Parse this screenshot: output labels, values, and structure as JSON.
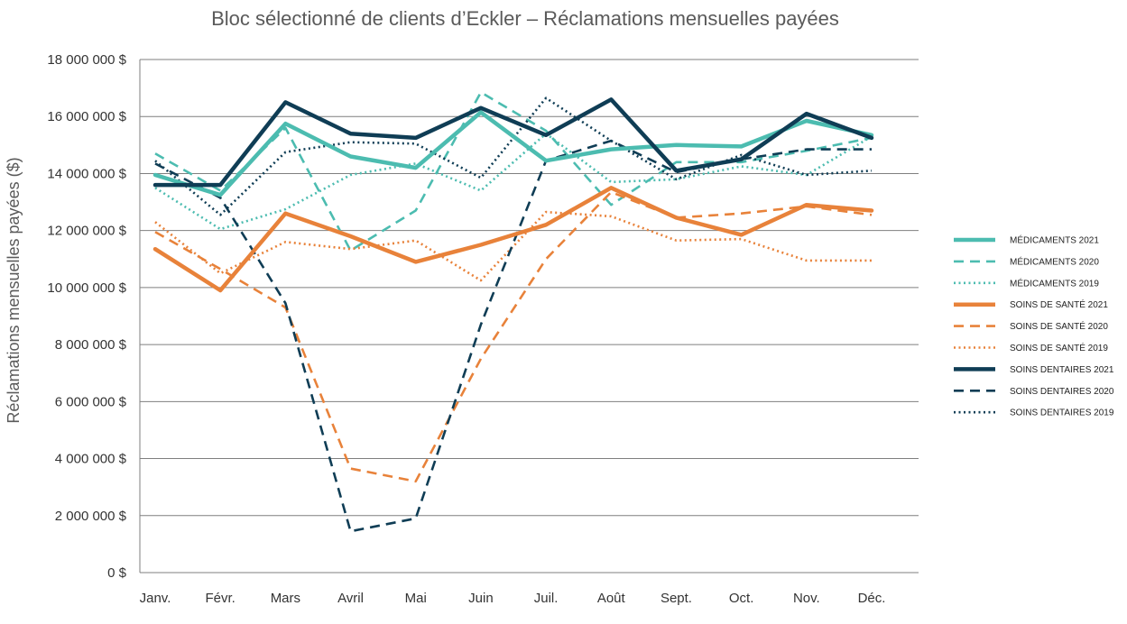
{
  "chart_data": {
    "type": "line",
    "title": "Bloc sélectionné de clients d’Eckler – Réclamations mensuelles payées",
    "xlabel": "",
    "ylabel": "Réclamations mensuelles payées ($)",
    "ylim": [
      0,
      18000000
    ],
    "yticks": [
      0,
      2000000,
      4000000,
      6000000,
      8000000,
      10000000,
      12000000,
      14000000,
      16000000,
      18000000
    ],
    "ytick_labels": [
      "0 $",
      "2 000  000 $",
      "4 000  000 $",
      "6 000  000 $",
      "8 000  000 $",
      "10 000  000 $",
      "12 000  000 $",
      "14 000  000 $",
      "16 000  000 $",
      "18 000  000 $"
    ],
    "grid": true,
    "legend_position": "right",
    "categories": [
      "Janv.",
      "Févr.",
      "Mars",
      "Avril",
      "Mai",
      "Juin",
      "Juil.",
      "Août",
      "Sept.",
      "Oct.",
      "Nov.",
      "Déc."
    ],
    "series": [
      {
        "name": "MÉDICAMENTS 2021",
        "color": "#4cbcb0",
        "style": "solid",
        "weight": "thick",
        "values": [
          13950000,
          13250000,
          15750000,
          14600000,
          14200000,
          16150000,
          14450000,
          14850000,
          15000000,
          14950000,
          15850000,
          15350000
        ]
      },
      {
        "name": "MÉDICAMENTS 2020",
        "color": "#4cbcb0",
        "style": "dashed",
        "weight": "medium",
        "values": [
          14700000,
          13400000,
          15600000,
          11300000,
          12700000,
          16850000,
          15500000,
          12900000,
          14400000,
          14400000,
          14800000,
          15250000
        ]
      },
      {
        "name": "MÉDICAMENTS 2019",
        "color": "#4cbcb0",
        "style": "dotted",
        "weight": "medium",
        "values": [
          13500000,
          12050000,
          12750000,
          13950000,
          14350000,
          13400000,
          15400000,
          13700000,
          13800000,
          14250000,
          13950000,
          15300000
        ]
      },
      {
        "name": "SOINS DE SANTÉ 2021",
        "color": "#e8823a",
        "style": "solid",
        "weight": "thick",
        "values": [
          11350000,
          9900000,
          12600000,
          11800000,
          10900000,
          11500000,
          12200000,
          13500000,
          12450000,
          11850000,
          12900000,
          12700000
        ]
      },
      {
        "name": "SOINS DE SANTÉ 2020",
        "color": "#e8823a",
        "style": "dashed",
        "weight": "medium",
        "values": [
          11950000,
          10650000,
          9300000,
          3650000,
          3200000,
          7500000,
          11000000,
          13350000,
          12450000,
          12600000,
          12850000,
          12550000
        ]
      },
      {
        "name": "SOINS DE SANTÉ 2019",
        "color": "#e8823a",
        "style": "dotted",
        "weight": "medium",
        "values": [
          12300000,
          10500000,
          11600000,
          11350000,
          11650000,
          10250000,
          12650000,
          12500000,
          11650000,
          11700000,
          10950000,
          10950000
        ]
      },
      {
        "name": "SOINS DENTAIRES 2021",
        "color": "#0f3d55",
        "style": "solid",
        "weight": "thick",
        "values": [
          13600000,
          13600000,
          16500000,
          15400000,
          15250000,
          16300000,
          15350000,
          16600000,
          14100000,
          14500000,
          16100000,
          15250000
        ]
      },
      {
        "name": "SOINS DENTAIRES 2020",
        "color": "#0f3d55",
        "style": "dashed",
        "weight": "medium",
        "values": [
          14350000,
          13150000,
          9450000,
          1450000,
          1900000,
          8700000,
          14450000,
          15150000,
          14050000,
          14500000,
          14850000,
          14850000
        ]
      },
      {
        "name": "SOINS DENTAIRES 2019",
        "color": "#0f3d55",
        "style": "dotted",
        "weight": "medium",
        "values": [
          14450000,
          12550000,
          14750000,
          15100000,
          15050000,
          13850000,
          16650000,
          15150000,
          13800000,
          14650000,
          13950000,
          14100000
        ]
      }
    ]
  }
}
